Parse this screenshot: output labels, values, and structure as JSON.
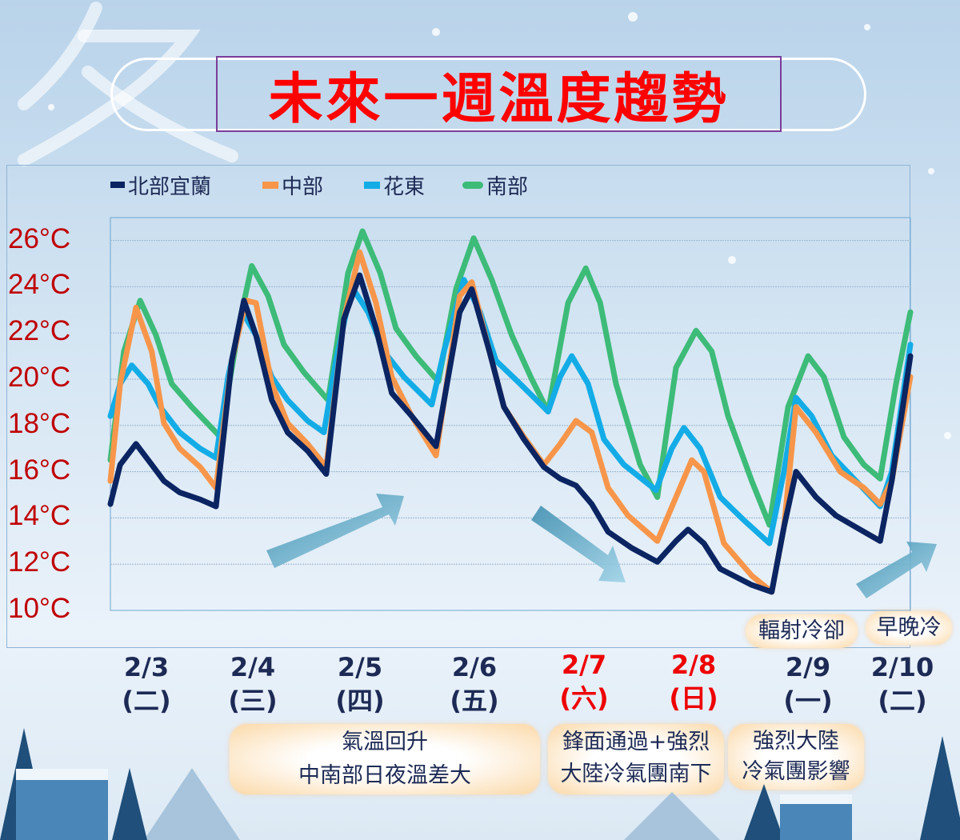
{
  "title": "未來一週溫度趨勢",
  "colors": {
    "north": "#0b2462",
    "central": "#f7964a",
    "east": "#13ace6",
    "south": "#3dbb78",
    "tick": "#c00000",
    "weekend": "#e00000"
  },
  "chart_data": {
    "type": "line",
    "title": "未來一週溫度趨勢",
    "xlabel": "",
    "ylabel": "",
    "x_unit": "hours since 2/3 00:00",
    "xlim": [
      8,
      180
    ],
    "ylim": [
      10,
      27
    ],
    "yticks": [
      10,
      12,
      14,
      16,
      18,
      20,
      22,
      24,
      26
    ],
    "ytick_labels": [
      "10°C",
      "12°C",
      "14°C",
      "16°C",
      "18°C",
      "20°C",
      "22°C",
      "24°C",
      "26°C"
    ],
    "grid": true,
    "legend_position": "top-left",
    "categories": [
      {
        "date": "2/3",
        "weekday": "(二)",
        "weekend": false
      },
      {
        "date": "2/4",
        "weekday": "(三)",
        "weekend": false
      },
      {
        "date": "2/5",
        "weekday": "(四)",
        "weekend": false
      },
      {
        "date": "2/6",
        "weekday": "(五)",
        "weekend": false
      },
      {
        "date": "2/7",
        "weekday": "(六)",
        "weekend": true
      },
      {
        "date": "2/8",
        "weekday": "(日)",
        "weekend": true
      },
      {
        "date": "2/9",
        "weekday": "(一)",
        "weekend": false
      },
      {
        "date": "2/10",
        "weekday": "(二)",
        "weekend": false
      }
    ],
    "series": [
      {
        "name": "北部宜蘭",
        "key": "north",
        "points": [
          [
            8,
            14.6
          ],
          [
            10.1,
            16.3
          ],
          [
            13.5,
            17.2
          ],
          [
            16.9,
            16.3
          ],
          [
            19.5,
            15.6
          ],
          [
            22.9,
            15.1
          ],
          [
            27.3,
            14.8
          ],
          [
            30.7,
            14.5
          ],
          [
            34.1,
            20.8
          ],
          [
            36.7,
            23.4
          ],
          [
            39.3,
            21.9
          ],
          [
            42.7,
            19.1
          ],
          [
            46.1,
            17.7
          ],
          [
            50.4,
            16.9
          ],
          [
            54.4,
            15.9
          ],
          [
            58.2,
            22.6
          ],
          [
            61.6,
            24.5
          ],
          [
            65.1,
            22.2
          ],
          [
            68.5,
            19.4
          ],
          [
            72.8,
            18.4
          ],
          [
            78,
            17.1
          ],
          [
            83.1,
            22.9
          ],
          [
            85.7,
            23.9
          ],
          [
            89.5,
            21.2
          ],
          [
            92.6,
            18.8
          ],
          [
            96.9,
            17.4
          ],
          [
            101.2,
            16.2
          ],
          [
            104.7,
            15.7
          ],
          [
            108.1,
            15.4
          ],
          [
            111.5,
            14.6
          ],
          [
            115,
            13.4
          ],
          [
            120.1,
            12.7
          ],
          [
            125.6,
            12.1
          ],
          [
            129.6,
            13
          ],
          [
            132.2,
            13.5
          ],
          [
            135.6,
            12.9
          ],
          [
            139.1,
            11.8
          ],
          [
            145.9,
            11.1
          ],
          [
            150.2,
            10.8
          ],
          [
            152.8,
            13.6
          ],
          [
            155.4,
            16
          ],
          [
            159.7,
            14.9
          ],
          [
            164,
            14.1
          ],
          [
            168.3,
            13.6
          ],
          [
            173.5,
            13
          ],
          [
            176,
            15.6
          ],
          [
            180,
            21
          ]
        ]
      },
      {
        "name": "中部",
        "key": "central",
        "points": [
          [
            8,
            15.6
          ],
          [
            10.1,
            19.8
          ],
          [
            13.5,
            23.1
          ],
          [
            16.9,
            21.2
          ],
          [
            19.5,
            18.1
          ],
          [
            22.9,
            17
          ],
          [
            27.3,
            16.2
          ],
          [
            30.7,
            15.3
          ],
          [
            34.1,
            20.8
          ],
          [
            37.2,
            23.4
          ],
          [
            39.3,
            23.3
          ],
          [
            42.7,
            19.8
          ],
          [
            46.1,
            18.1
          ],
          [
            50.4,
            17.2
          ],
          [
            54.4,
            16.2
          ],
          [
            58.2,
            22.6
          ],
          [
            61.6,
            25.5
          ],
          [
            65.1,
            23.3
          ],
          [
            68.5,
            20.1
          ],
          [
            72.8,
            18.4
          ],
          [
            78,
            16.7
          ],
          [
            83.1,
            23.6
          ],
          [
            85.7,
            24.2
          ],
          [
            89.5,
            21.2
          ],
          [
            92.6,
            18.8
          ],
          [
            96.9,
            17.5
          ],
          [
            101.2,
            16.3
          ],
          [
            104.7,
            17.2
          ],
          [
            108.1,
            18.2
          ],
          [
            111.5,
            17.7
          ],
          [
            115,
            15.3
          ],
          [
            119.3,
            14.1
          ],
          [
            125.6,
            13
          ],
          [
            129.6,
            14.9
          ],
          [
            133,
            16.5
          ],
          [
            135.6,
            16
          ],
          [
            139.9,
            12.9
          ],
          [
            145.9,
            11.5
          ],
          [
            150.2,
            10.8
          ],
          [
            152.8,
            13.6
          ],
          [
            155.4,
            18.8
          ],
          [
            159.7,
            17.7
          ],
          [
            164.9,
            16
          ],
          [
            170,
            15.3
          ],
          [
            173.5,
            14.6
          ],
          [
            176,
            15.6
          ],
          [
            180,
            20.1
          ]
        ]
      },
      {
        "name": "花東",
        "key": "east",
        "points": [
          [
            8,
            18.4
          ],
          [
            10.1,
            19.8
          ],
          [
            12.6,
            20.6
          ],
          [
            16.1,
            19.8
          ],
          [
            18.7,
            18.8
          ],
          [
            22.9,
            17.7
          ],
          [
            27.3,
            17
          ],
          [
            30.7,
            16.6
          ],
          [
            33.3,
            20.1
          ],
          [
            36.4,
            22.9
          ],
          [
            39.3,
            21.9
          ],
          [
            42.7,
            20.1
          ],
          [
            46.1,
            19.1
          ],
          [
            50.4,
            18.2
          ],
          [
            53.9,
            17.7
          ],
          [
            56.5,
            20.8
          ],
          [
            59.9,
            24
          ],
          [
            63.4,
            22.9
          ],
          [
            66.8,
            21.2
          ],
          [
            71.1,
            20.1
          ],
          [
            77.1,
            18.9
          ],
          [
            79.7,
            21.2
          ],
          [
            84,
            24.3
          ],
          [
            87.5,
            22.9
          ],
          [
            90.9,
            20.8
          ],
          [
            96.1,
            19.8
          ],
          [
            102.1,
            18.6
          ],
          [
            104.7,
            20.1
          ],
          [
            107.2,
            21
          ],
          [
            110.7,
            19.8
          ],
          [
            114.1,
            17.4
          ],
          [
            118.4,
            16.3
          ],
          [
            125.3,
            15.2
          ],
          [
            128.7,
            17
          ],
          [
            131.3,
            17.9
          ],
          [
            134.8,
            17
          ],
          [
            139.1,
            14.9
          ],
          [
            144.2,
            13.9
          ],
          [
            149.7,
            12.9
          ],
          [
            152.8,
            16
          ],
          [
            155.4,
            19.2
          ],
          [
            158.8,
            18.4
          ],
          [
            163.1,
            16.7
          ],
          [
            168.3,
            15.6
          ],
          [
            173.5,
            14.5
          ],
          [
            176,
            16
          ],
          [
            180,
            21.5
          ]
        ]
      },
      {
        "name": "南部",
        "key": "south",
        "points": [
          [
            8,
            16.5
          ],
          [
            10.9,
            21.2
          ],
          [
            14.4,
            23.4
          ],
          [
            17.8,
            21.9
          ],
          [
            21.2,
            19.8
          ],
          [
            25.5,
            18.8
          ],
          [
            30.7,
            17.7
          ],
          [
            31.6,
            17.5
          ],
          [
            35.9,
            22.6
          ],
          [
            38.4,
            24.9
          ],
          [
            41.9,
            23.6
          ],
          [
            45.3,
            21.5
          ],
          [
            49.6,
            20.3
          ],
          [
            53.9,
            19.3
          ],
          [
            54.8,
            19.1
          ],
          [
            59.1,
            24.6
          ],
          [
            62.2,
            26.4
          ],
          [
            66,
            24.6
          ],
          [
            69.4,
            22.2
          ],
          [
            73.7,
            21
          ],
          [
            78.5,
            19.9
          ],
          [
            82.3,
            23.9
          ],
          [
            86.1,
            26.1
          ],
          [
            90,
            24.3
          ],
          [
            94.3,
            21.9
          ],
          [
            98.6,
            20
          ],
          [
            102.1,
            18.6
          ],
          [
            106.4,
            23.3
          ],
          [
            110.2,
            24.8
          ],
          [
            113.3,
            23.3
          ],
          [
            116.7,
            19.8
          ],
          [
            121.9,
            16.3
          ],
          [
            125.6,
            14.9
          ],
          [
            129.6,
            20.5
          ],
          [
            133.9,
            22.1
          ],
          [
            137.3,
            21.2
          ],
          [
            140.8,
            18.4
          ],
          [
            145.9,
            15.6
          ],
          [
            149.7,
            13.7
          ],
          [
            153.7,
            18.8
          ],
          [
            158,
            21
          ],
          [
            161.4,
            20.1
          ],
          [
            165.7,
            17.5
          ],
          [
            170,
            16.3
          ],
          [
            173.5,
            15.7
          ],
          [
            176.9,
            19.8
          ],
          [
            180,
            22.9
          ]
        ]
      }
    ]
  },
  "notes": {
    "radiative_cooling": "輻射冷卻",
    "cold_morning_evening": "早晚冷",
    "warming_1": "氣溫回升",
    "warming_2": "中南部日夜溫差大",
    "front_1": "鋒面通過+強烈",
    "front_2": "大陸冷氣團南下",
    "coldair_1": "強烈大陸",
    "coldair_2": "冷氣團影響"
  },
  "watermark": "冬"
}
